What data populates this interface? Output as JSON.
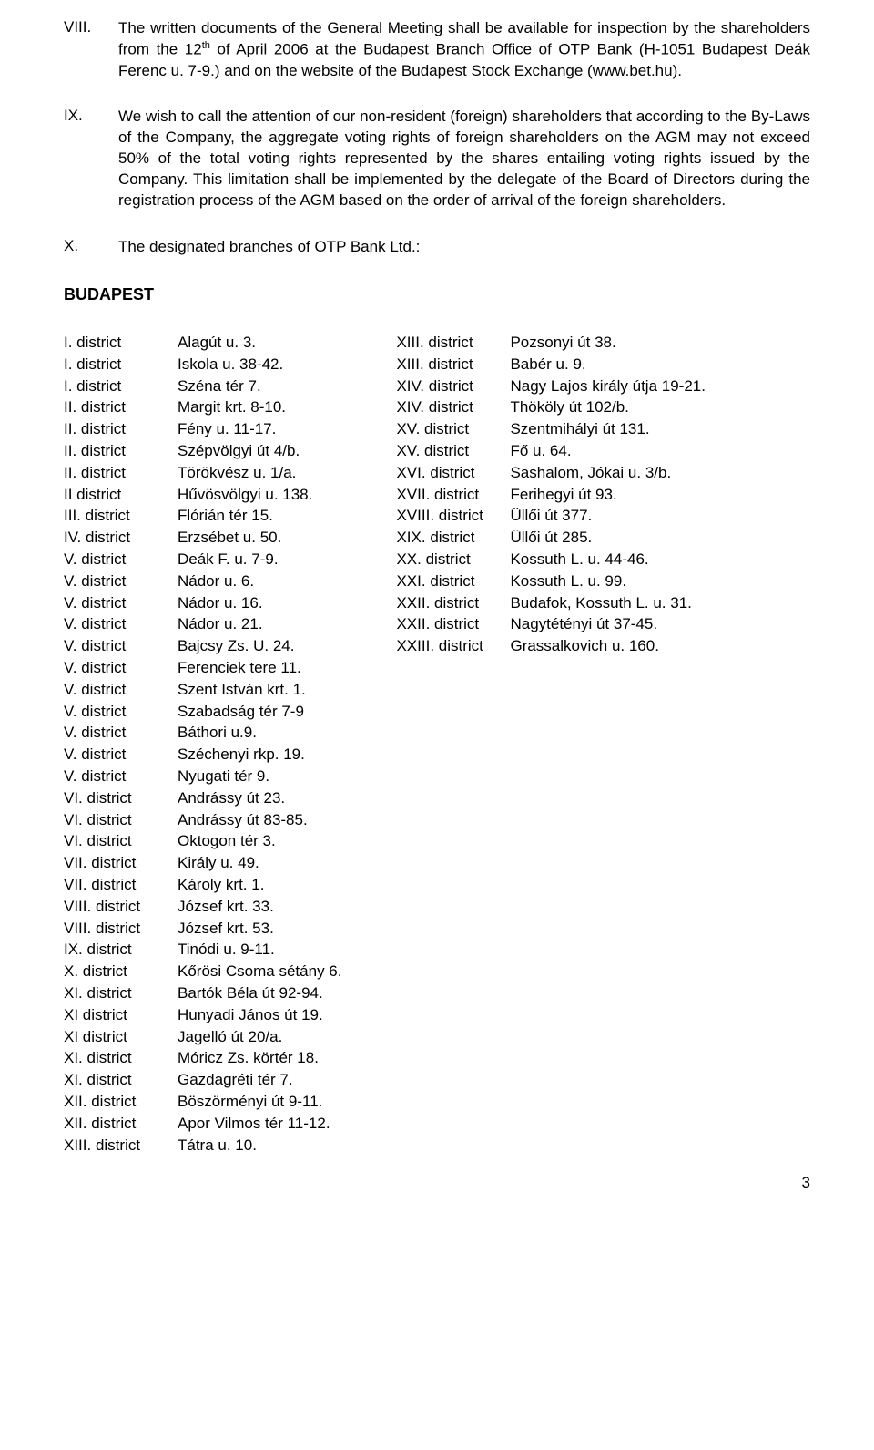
{
  "sections": [
    {
      "numeral": "VIII.",
      "html": "The written documents of the General Meeting shall be available for inspection by the shareholders from the 12<sup>th</sup> of April 2006 at the Budapest Branch Office of OTP Bank (H-1051 Budapest Deák Ferenc u. 7-9.) and on the website of the Budapest Stock Exchange (www.bet.hu)."
    },
    {
      "numeral": "IX.",
      "html": "We wish to call the attention of our non-resident (foreign) shareholders that according to the By-Laws of the Company, the aggregate voting rights of foreign shareholders on the AGM may not exceed 50% of the total voting rights represented by the shares entailing voting rights issued by the Company. This limitation shall be implemented by the delegate of the Board of Directors during the registration process of the AGM based on the order of arrival of the foreign shareholders."
    },
    {
      "numeral": "X.",
      "html": "The designated branches of OTP Bank Ltd.:"
    }
  ],
  "cityHeading": "BUDAPEST",
  "leftRows": [
    {
      "d": "I. district",
      "a": "Alagút u. 3."
    },
    {
      "d": "I. district",
      "a": "Iskola u. 38-42."
    },
    {
      "d": "I. district",
      "a": "Széna tér 7."
    },
    {
      "d": "II. district",
      "a": "Margit krt. 8-10."
    },
    {
      "d": "II. district",
      "a": "Fény u. 11-17."
    },
    {
      "d": "II. district",
      "a": "Szépvölgyi út 4/b."
    },
    {
      "d": "II. district",
      "a": "Törökvész u. 1/a."
    },
    {
      "d": "II district",
      "a": "Hűvösvölgyi u. 138."
    },
    {
      "d": "III. district",
      "a": "Flórián tér 15."
    },
    {
      "d": "IV. district",
      "a": "Erzsébet u. 50."
    },
    {
      "d": "V. district",
      "a": "Deák F. u. 7-9."
    },
    {
      "d": "V. district",
      "a": "Nádor u. 6."
    },
    {
      "d": "V. district",
      "a": "Nádor u. 16."
    },
    {
      "d": "V. district",
      "a": "Nádor u. 21."
    },
    {
      "d": "V. district",
      "a": "Bajcsy Zs. U. 24."
    },
    {
      "d": "V. district",
      "a": "Ferenciek tere 11."
    },
    {
      "d": "V. district",
      "a": "Szent István krt. 1."
    },
    {
      "d": "V. district",
      "a": "Szabadság tér 7-9"
    },
    {
      "d": "V. district",
      "a": "Báthori u.9."
    },
    {
      "d": "V. district",
      "a": "Széchenyi rkp. 19."
    },
    {
      "d": "V. district",
      "a": "Nyugati tér 9."
    },
    {
      "d": "VI. district",
      "a": "Andrássy út 23."
    },
    {
      "d": "VI. district",
      "a": "Andrássy út 83-85."
    },
    {
      "d": "VI. district",
      "a": "Oktogon tér 3."
    },
    {
      "d": "VII. district",
      "a": "Király u. 49."
    },
    {
      "d": "VII. district",
      "a": "Károly krt. 1."
    },
    {
      "d": "VIII. district",
      "a": "József krt. 33."
    },
    {
      "d": "VIII. district",
      "a": "József krt. 53."
    },
    {
      "d": "IX. district",
      "a": "Tinódi u. 9-11."
    },
    {
      "d": "X. district",
      "a": "Kőrösi Csoma sétány 6."
    },
    {
      "d": "XI. district",
      "a": "Bartók Béla út 92-94."
    },
    {
      "d": "XI district",
      "a": "Hunyadi János út 19."
    },
    {
      "d": "XI district",
      "a": "Jagelló út 20/a."
    },
    {
      "d": "XI. district",
      "a": "Móricz Zs. körtér 18."
    },
    {
      "d": "XI. district",
      "a": "Gazdagréti tér 7."
    },
    {
      "d": "XII. district",
      "a": "Böszörményi út 9-11."
    },
    {
      "d": "XII. district",
      "a": "Apor Vilmos tér 11-12."
    },
    {
      "d": "XIII. district",
      "a": "Tátra u. 10."
    }
  ],
  "rightRows": [
    {
      "d": "XIII. district",
      "a": "Pozsonyi út 38."
    },
    {
      "d": "XIII. district",
      "a": "Babér u. 9."
    },
    {
      "d": "XIV. district",
      "a": "Nagy Lajos király útja 19-21."
    },
    {
      "d": "XIV. district",
      "a": "Thököly út 102/b."
    },
    {
      "d": "XV. district",
      "a": "Szentmihályi út 131."
    },
    {
      "d": "XV. district",
      "a": "Fő u. 64."
    },
    {
      "d": "XVI. district",
      "a": "Sashalom, Jókai u. 3/b."
    },
    {
      "d": "XVII. district",
      "a": "Ferihegyi út 93."
    },
    {
      "d": "XVIII. district",
      "a": "Üllői út 377."
    },
    {
      "d": "XIX. district",
      "a": "Üllői út 285."
    },
    {
      "d": "XX. district",
      "a": "Kossuth L. u. 44-46."
    },
    {
      "d": "XXI. district",
      "a": "Kossuth L. u. 99."
    },
    {
      "d": "XXII. district",
      "a": "Budafok, Kossuth L. u. 31."
    },
    {
      "d": "XXII. district",
      "a": "Nagytétényi út 37-45."
    },
    {
      "d": "XXIII. district",
      "a": "Grassalkovich u. 160."
    }
  ],
  "pageNumber": "3"
}
